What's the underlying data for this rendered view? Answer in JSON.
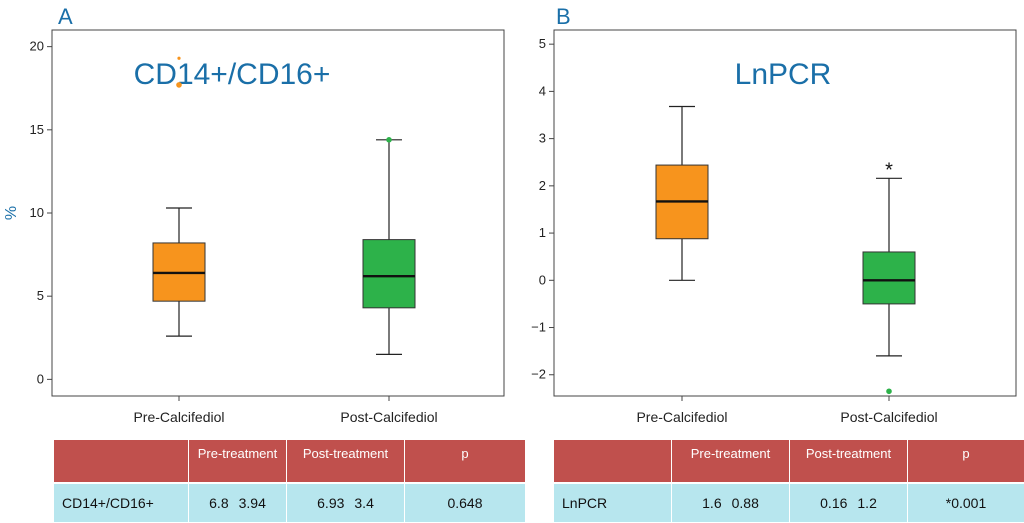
{
  "chart_data": [
    {
      "panel": "A",
      "type": "box",
      "title": "CD14+/CD16+",
      "ylabel": "%",
      "xlabel": "",
      "ylim": [
        -1,
        21
      ],
      "yticks": [
        0,
        5,
        10,
        15,
        20
      ],
      "grid": false,
      "categories": [
        "Pre-Calcifediol",
        "Post-Calcifediol"
      ],
      "boxes": [
        {
          "category": "Pre-Calcifediol",
          "min": 2.6,
          "q1": 4.7,
          "median": 6.4,
          "q3": 8.2,
          "max": 10.3,
          "outliers": [
            17.7,
            19.3
          ],
          "color": "#f7941d"
        },
        {
          "category": "Post-Calcifediol",
          "min": 1.5,
          "q1": 4.3,
          "median": 6.2,
          "q3": 8.4,
          "max": 14.4,
          "outliers": [
            14.4
          ],
          "color": "#2db24a"
        }
      ],
      "annotations": []
    },
    {
      "panel": "B",
      "type": "box",
      "title": "LnPCR",
      "ylabel": "",
      "xlabel": "",
      "ylim": [
        -2.45,
        5.3
      ],
      "yticks": [
        -2,
        -1,
        0,
        1,
        2,
        3,
        4,
        5
      ],
      "grid": false,
      "categories": [
        "Pre-Calcifediol",
        "Post-Calcifediol"
      ],
      "boxes": [
        {
          "category": "Pre-Calcifediol",
          "min": 0.0,
          "q1": 0.88,
          "median": 1.67,
          "q3": 2.44,
          "max": 3.68,
          "outliers": [],
          "color": "#f7941d"
        },
        {
          "category": "Post-Calcifediol",
          "min": -1.6,
          "q1": -0.5,
          "median": 0.0,
          "q3": 0.6,
          "max": 2.16,
          "outliers": [
            -2.35
          ],
          "color": "#2db24a"
        }
      ],
      "annotations": [
        {
          "category": "Post-Calcifediol",
          "text": "*"
        }
      ]
    }
  ],
  "tables": [
    {
      "headers": [
        "",
        "Pre-treatment",
        "Post-treatment",
        "p"
      ],
      "row": {
        "label": "CD14+/CD16+",
        "pre_mean": "6.8",
        "pre_sd": "3.94",
        "post_mean": "6.93",
        "post_sd": "3.4",
        "p": "0.648"
      }
    },
    {
      "headers": [
        "",
        "Pre-treatment",
        "Post-treatment",
        "p"
      ],
      "row": {
        "label": "LnPCR",
        "pre_mean": "1.6",
        "pre_sd": "0.88",
        "post_mean": "0.16",
        "post_sd": "1.2",
        "p": "*0.001"
      }
    }
  ]
}
